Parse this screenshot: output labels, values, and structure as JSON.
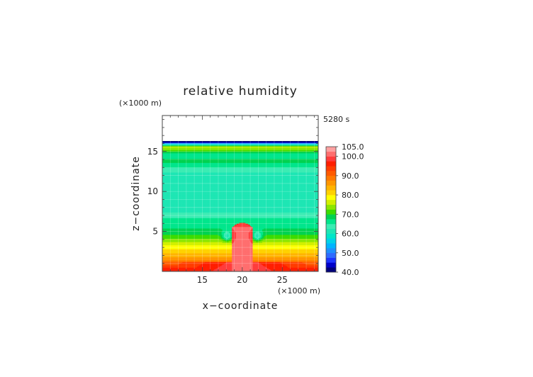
{
  "chart_data": {
    "type": "heatmap",
    "title": "relative humidity",
    "xlabel": "x−coordinate",
    "ylabel": "z−coordinate",
    "x_unit": "(×1000 m)",
    "y_unit": "(×1000 m)",
    "time_label": "5280 s",
    "xlim": [
      10,
      29.5
    ],
    "ylim": [
      0,
      19.5
    ],
    "xticks": [
      15,
      20,
      25
    ],
    "yticks": [
      5,
      10,
      15
    ],
    "grid": true,
    "colorbar": {
      "levels": [
        40,
        42.5,
        45,
        47.5,
        50,
        52.5,
        55,
        57.5,
        60,
        62.5,
        65,
        67.5,
        70,
        72.5,
        75,
        77.5,
        80,
        82.5,
        85,
        87.5,
        90,
        92.5,
        95,
        97.5,
        100,
        102.5,
        105
      ],
      "labels": [
        "40.0",
        "50.0",
        "60.0",
        "70.0",
        "80.0",
        "90.0",
        "100.0",
        "105.0"
      ],
      "colors": [
        "#00007a",
        "#0000c8",
        "#1c34ff",
        "#2f6bff",
        "#1e90ff",
        "#00b4ff",
        "#00d2e8",
        "#00e6c8",
        "#1ee6b4",
        "#3cecb4",
        "#00e68c",
        "#00d250",
        "#3cdc00",
        "#8ce600",
        "#d2f000",
        "#ffff00",
        "#ffd200",
        "#ffb400",
        "#ff9600",
        "#ff7800",
        "#ff5a00",
        "#ff3c00",
        "#ff1e00",
        "#ff3c3c",
        "#ff6e6e",
        "#ffa0a0"
      ]
    },
    "field": {
      "top_of_data_km": 16.3,
      "plume_center_km": 20,
      "plume_top_km": 5.6,
      "layers_km_rh": [
        [
          0.0,
          98
        ],
        [
          0.4,
          96
        ],
        [
          1.0,
          90
        ],
        [
          1.6,
          86
        ],
        [
          2.4,
          82
        ],
        [
          3.0,
          79
        ],
        [
          3.6,
          76
        ],
        [
          4.2,
          72
        ],
        [
          4.8,
          69
        ],
        [
          5.6,
          67
        ],
        [
          6.4,
          66
        ],
        [
          7.2,
          63
        ],
        [
          8.0,
          61
        ],
        [
          11.5,
          60
        ],
        [
          12.6,
          63
        ],
        [
          13.2,
          66
        ],
        [
          13.9,
          69
        ],
        [
          14.4,
          65
        ],
        [
          14.9,
          68
        ],
        [
          15.3,
          74
        ],
        [
          15.6,
          76
        ],
        [
          15.8,
          66
        ],
        [
          16.0,
          54
        ],
        [
          16.15,
          44
        ],
        [
          16.3,
          40
        ]
      ]
    }
  }
}
